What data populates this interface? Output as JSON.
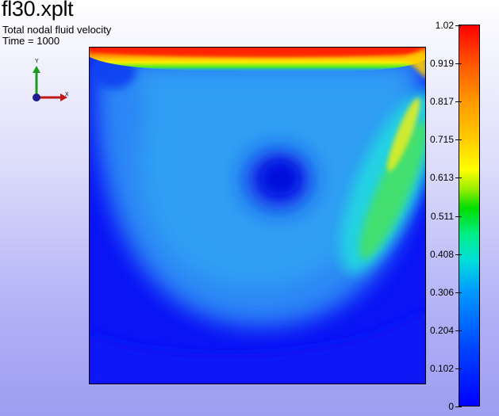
{
  "title": "fl30.xplt",
  "subtitle_line1": "Total nodal fluid velocity",
  "subtitle_line2": "Time = 1000",
  "triad": {
    "y_label": "Y",
    "x_label": "X",
    "y_color": "#1a9b1a",
    "x_color": "#c01818",
    "origin_color": "#1d1d8f"
  },
  "colorbar": {
    "ticks": [
      "1.02",
      "0.919",
      "0.817",
      "0.715",
      "0.613",
      "0.511",
      "0.408",
      "0.306",
      "0.204",
      "0.102",
      "0"
    ]
  }
}
